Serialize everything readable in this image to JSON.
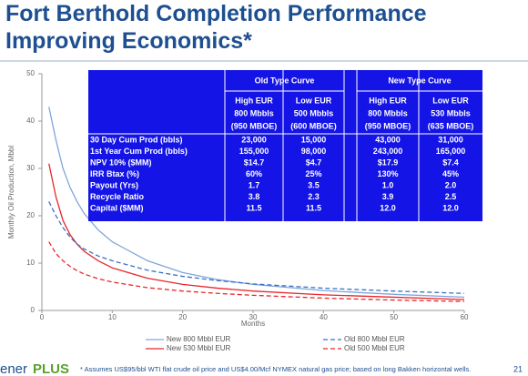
{
  "title": [
    "Fort Berthold Completion Performance",
    "Improving Economics*"
  ],
  "chart_data": {
    "type": "line",
    "y_label": "Monthly Oil Production, Mbbl",
    "x_label": "Months",
    "x": [
      1,
      2,
      3,
      4,
      5,
      6,
      8,
      10,
      15,
      20,
      25,
      30,
      40,
      50,
      60
    ],
    "series": [
      {
        "name": "New 800 Mbbl EUR",
        "color": "#7ea6da",
        "line_style": "solid",
        "values": [
          43,
          36,
          30,
          26,
          23,
          20.5,
          17,
          14.5,
          10.5,
          8,
          6.5,
          5.5,
          4.2,
          3.4,
          2.8
        ]
      },
      {
        "name": "New 530 Mbbl EUR",
        "color": "#e8262a",
        "line_style": "solid",
        "values": [
          31,
          24,
          19,
          16,
          14,
          12.5,
          10.5,
          9,
          6.8,
          5.5,
          4.7,
          4.1,
          3.3,
          2.8,
          2.3
        ]
      },
      {
        "name": "Old 800 Mbbl EUR",
        "color": "#3a6fc4",
        "line_style": "dashed",
        "values": [
          23,
          20,
          17.5,
          15.5,
          14,
          13,
          11.5,
          10.5,
          8.5,
          7.2,
          6.3,
          5.6,
          4.7,
          4.1,
          3.6
        ]
      },
      {
        "name": "Old 500 Mbbl EUR",
        "color": "#e8262a",
        "line_style": "dashed",
        "values": [
          14.5,
          12,
          10.5,
          9.3,
          8.4,
          7.7,
          6.7,
          6,
          4.8,
          4.1,
          3.6,
          3.2,
          2.6,
          2.2,
          1.9
        ]
      }
    ],
    "xlim": [
      0,
      60
    ],
    "xticks": [
      0,
      10,
      20,
      30,
      40,
      50,
      60
    ],
    "ylim": [
      0,
      50
    ],
    "yticks": [
      0,
      10,
      20,
      30,
      40,
      50
    ]
  },
  "table": {
    "group_headers": [
      "Old Type Curve",
      "New Type Curve"
    ],
    "column_headers": [
      [
        "High EUR",
        "800 Mbbls",
        "(950 MBOE)"
      ],
      [
        "Low EUR",
        "500 Mbbls",
        "(600 MBOE)"
      ],
      [
        "High EUR",
        "800 Mbbls",
        "(950 MBOE)"
      ],
      [
        "Low EUR",
        "530 Mbbls",
        "(635 MBOE)"
      ]
    ],
    "rows": [
      [
        "30 Day Cum Prod (bbls)",
        "23,000",
        "15,000",
        "43,000",
        "31,000"
      ],
      [
        "1st Year Cum Prod (bbls)",
        "155,000",
        "98,000",
        "243,000",
        "165,000"
      ],
      [
        "NPV 10% ($MM)",
        "$14.7",
        "$4.7",
        "$17.9",
        "$7.4"
      ],
      [
        "IRR Btax (%)",
        "60%",
        "25%",
        "130%",
        "45%"
      ],
      [
        "Payout (Yrs)",
        "1.7",
        "3.5",
        "1.0",
        "2.0"
      ],
      [
        "Recycle Ratio",
        "3.8",
        "2.3",
        "3.9",
        "2.5"
      ],
      [
        "Capital ($MM)",
        "11.5",
        "11.5",
        "12.0",
        "12.0"
      ]
    ]
  },
  "footnote": "* Assumes US$95/bbl WTI flat crude oil price and US$4.00/Mcf NYMEX natural gas price; based on long Bakken horizontal wells.",
  "logo": [
    "ener",
    "PLUS"
  ],
  "page_number": "21"
}
